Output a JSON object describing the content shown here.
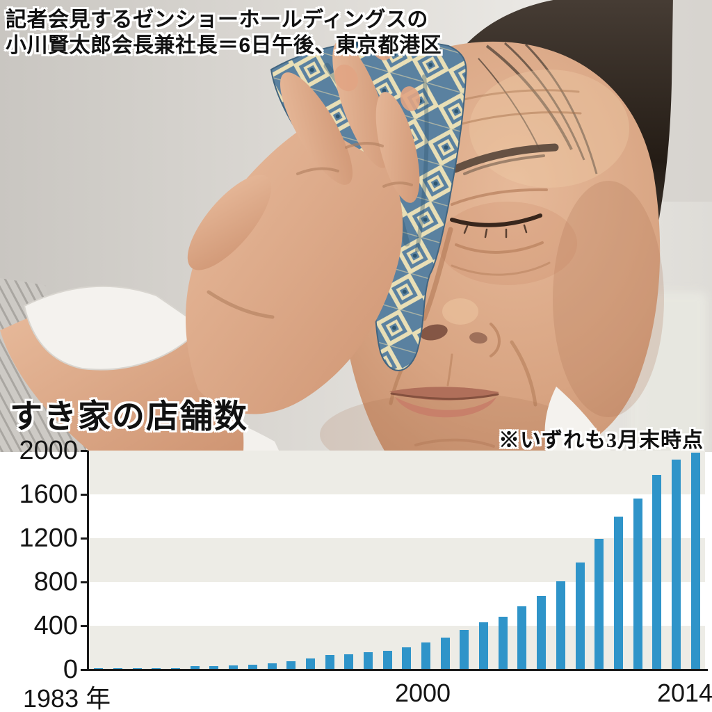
{
  "caption": {
    "line1": "記者会見するゼンショーホールディングスの",
    "line2": "小川賢太郎会長兼社長＝6日午後、東京都港区"
  },
  "chart": {
    "title": "すき家の店舗数",
    "note": "※いずれも3月末時点"
  },
  "chart_data": {
    "type": "bar",
    "title": "すき家の店舗数",
    "note": "※いずれも3月末時点",
    "x": [
      1983,
      1984,
      1985,
      1986,
      1987,
      1988,
      1989,
      1990,
      1991,
      1992,
      1993,
      1994,
      1995,
      1996,
      1997,
      1998,
      1999,
      2000,
      2001,
      2002,
      2003,
      2004,
      2005,
      2006,
      2007,
      2008,
      2009,
      2010,
      2011,
      2012,
      2013,
      2014
    ],
    "values": [
      15,
      15,
      15,
      12,
      14,
      30,
      32,
      40,
      45,
      58,
      76,
      103,
      131,
      140,
      157,
      173,
      203,
      245,
      295,
      360,
      430,
      480,
      580,
      675,
      805,
      980,
      1195,
      1395,
      1560,
      1780,
      1915,
      1980
    ],
    "ylim": [
      0,
      2000
    ],
    "yticks": [
      0,
      400,
      800,
      1200,
      1600,
      2000
    ],
    "xtick_labels": [
      "1983 年",
      "2000",
      "2014"
    ],
    "bar_color": "#2f94c9",
    "band_color": "#edece6",
    "band_alt_color": "#ffffff",
    "axis_color": "#1a1a1a",
    "grid": "horizontal-bands",
    "legend_position": "none"
  }
}
